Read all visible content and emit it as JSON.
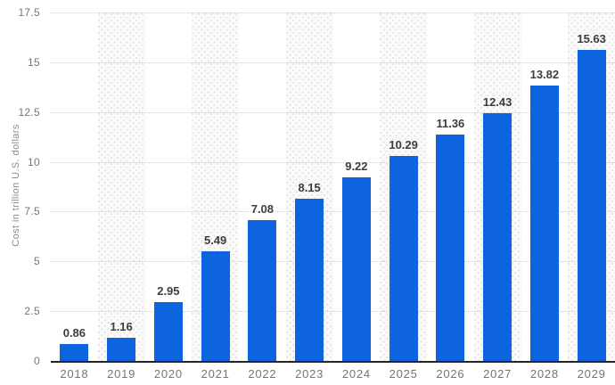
{
  "chart_data": {
    "type": "bar",
    "title": "",
    "xlabel": "",
    "ylabel": "Cost in trillion U.S. dollars",
    "categories": [
      "2018",
      "2019",
      "2020",
      "2021",
      "2022",
      "2023",
      "2024",
      "2025",
      "2026",
      "2027",
      "2028",
      "2029"
    ],
    "values": [
      0.86,
      1.16,
      2.95,
      5.49,
      7.08,
      8.15,
      9.22,
      10.29,
      11.36,
      12.43,
      13.82,
      15.63
    ],
    "value_labels": [
      "0.86",
      "1.16",
      "2.95",
      "5.49",
      "7.08",
      "8.15",
      "9.22",
      "10.29",
      "11.36",
      "12.43",
      "13.82",
      "15.63"
    ],
    "ylim": [
      0,
      17.5
    ],
    "yticks": [
      0,
      2.5,
      5,
      7.5,
      10,
      12.5,
      15,
      17.5
    ],
    "ytick_labels": [
      "0",
      "2.5",
      "5",
      "7.5",
      "10",
      "12.5",
      "15",
      "17.5"
    ],
    "grid": "horizontal dotted gridlines at each y tick",
    "legend": "none",
    "plot_bands": "light dotted vertical bands behind alternating columns: 2019, 2021, 2023, 2025, 2027, 2029",
    "colors": {
      "bar": "#0d64dc",
      "value_label": "#3d3d3d",
      "tick_label": "#757575",
      "axis_title": "#8c8c8c",
      "gridline": "#c9c9c9",
      "baseline": "#262626",
      "band_fill": "#fafafa",
      "band_dot": "#e2e2e2",
      "background": "#ffffff"
    }
  }
}
